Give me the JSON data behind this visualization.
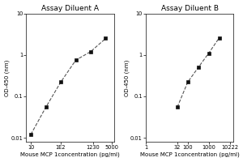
{
  "panel_A": {
    "title": "Assay Diluent A",
    "x_data": [
      10,
      32,
      100,
      320,
      1000,
      3200
    ],
    "y_data": [
      0.012,
      0.055,
      0.22,
      0.75,
      1.2,
      2.5
    ],
    "xlabel": "Mouse MCP 1concentration (pg/ml)",
    "ylabel": "OD-450 (nm)",
    "xlim": [
      7,
      6000
    ],
    "ylim": [
      0.008,
      10
    ],
    "xtick_vals": [
      10,
      100,
      1230,
      5000
    ],
    "xtick_labels": [
      "10",
      "1E2",
      "1230",
      "5000"
    ],
    "ytick_vals": [
      0.01,
      0.1,
      1,
      10
    ],
    "ytick_labels": [
      "0.01",
      "0.1",
      "1",
      "10"
    ]
  },
  "panel_B": {
    "title": "Assay Diluent B",
    "x_data": [
      32,
      100,
      320,
      1000,
      3200
    ],
    "y_data": [
      0.055,
      0.22,
      0.5,
      1.1,
      2.6
    ],
    "xlabel": "Mouse MCP 1concentration (pg/ml)",
    "ylabel": "OD-450 (nm)",
    "xlim": [
      7,
      15000
    ],
    "ylim": [
      0.008,
      10
    ],
    "xtick_vals": [
      1,
      32,
      100,
      1000,
      10222
    ],
    "xtick_labels": [
      "1",
      "32",
      "100",
      "1000",
      "10222"
    ],
    "ytick_vals": [
      0.01,
      0.1,
      1,
      10
    ],
    "ytick_labels": [
      "0.01",
      "0.1",
      "1",
      "10"
    ]
  },
  "marker_style": "s",
  "marker_size": 3.5,
  "line_style": "--",
  "line_color": "#555555",
  "marker_color": "#111111",
  "bg_color": "#ffffff",
  "fig_bg_color": "#ffffff",
  "title_fontsize": 6.5,
  "axis_fontsize": 5.0,
  "tick_fontsize": 4.8
}
